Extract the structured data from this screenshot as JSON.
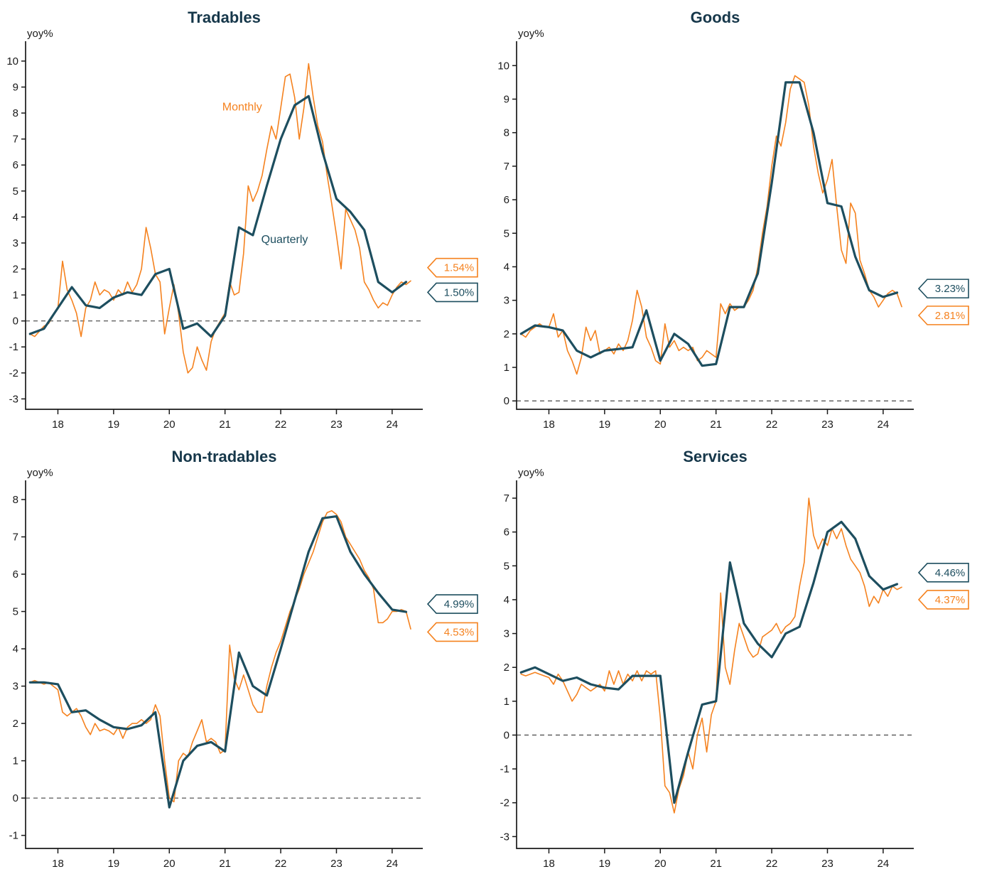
{
  "colors": {
    "monthly": "#F5821F",
    "quarterly": "#1D4E5F",
    "title": "#16374A",
    "axis": "#1A1A1A",
    "zero": "#555555"
  },
  "chart_data": [
    {
      "type": "line",
      "title": "Tradables",
      "ylabel": "yoy%",
      "ylim": [
        -3.4,
        10.6
      ],
      "xlim": [
        2017.42,
        2024.55
      ],
      "yticks": [
        -3,
        -2,
        -1,
        0,
        1,
        2,
        3,
        4,
        5,
        6,
        7,
        8,
        9,
        10
      ],
      "xticks": [
        2018,
        2019,
        2020,
        2021,
        2022,
        2023,
        2024
      ],
      "xtick_labels": [
        "18",
        "19",
        "20",
        "21",
        "22",
        "23",
        "24"
      ],
      "grid": false,
      "zero_line_dashed": true,
      "series": [
        {
          "name": "Monthly",
          "color_key": "monthly",
          "x_start": 2017.5,
          "x_step_months": 1,
          "values": [
            -0.5,
            -0.6,
            -0.4,
            -0.2,
            -0.1,
            0.2,
            0.5,
            2.3,
            1.2,
            0.8,
            0.3,
            -0.6,
            0.5,
            0.8,
            1.5,
            1.0,
            1.2,
            1.1,
            0.8,
            1.2,
            1.0,
            1.5,
            1.1,
            1.4,
            2.0,
            3.6,
            2.8,
            1.8,
            1.5,
            -0.5,
            0.5,
            1.4,
            0.3,
            -1.2,
            -2.0,
            -1.8,
            -1.0,
            -1.5,
            -1.9,
            -0.8,
            -0.3,
            0.0,
            0.3,
            1.5,
            1.0,
            1.1,
            2.6,
            5.2,
            4.6,
            5.0,
            5.6,
            6.6,
            7.5,
            7.0,
            8.2,
            9.4,
            9.5,
            8.6,
            7.0,
            8.2,
            9.9,
            8.6,
            7.5,
            6.9,
            5.6,
            4.5,
            3.3,
            2.0,
            4.3,
            3.9,
            3.5,
            2.8,
            1.5,
            1.2,
            0.8,
            0.5,
            0.7,
            0.6,
            1.0,
            1.3,
            1.5,
            1.4,
            1.54
          ]
        },
        {
          "name": "Quarterly",
          "color_key": "quarterly",
          "x_start": 2017.5,
          "x_step_months": 3,
          "values": [
            -0.5,
            -0.3,
            0.5,
            1.3,
            0.6,
            0.5,
            0.9,
            1.1,
            1.0,
            1.8,
            2.0,
            -0.3,
            -0.1,
            -0.6,
            0.2,
            3.6,
            3.3,
            5.2,
            7.0,
            8.3,
            8.65,
            6.5,
            4.7,
            4.2,
            3.5,
            1.5,
            1.1,
            1.5
          ]
        }
      ],
      "annotations": [
        {
          "text": "Monthly",
          "x": 2020.95,
          "y": 8.1,
          "color_key": "monthly"
        },
        {
          "text": "Quarterly",
          "x": 2021.65,
          "y": 3.0,
          "color_key": "quarterly"
        }
      ],
      "callouts": [
        {
          "text": "1.54%",
          "color_key": "monthly",
          "y": 2.05
        },
        {
          "text": "1.50%",
          "color_key": "quarterly",
          "y": 1.1
        }
      ]
    },
    {
      "type": "line",
      "title": "Goods",
      "ylabel": "yoy%",
      "ylim": [
        -0.25,
        10.6
      ],
      "xlim": [
        2017.42,
        2024.55
      ],
      "yticks": [
        0,
        1,
        2,
        3,
        4,
        5,
        6,
        7,
        8,
        9,
        10
      ],
      "xticks": [
        2018,
        2019,
        2020,
        2021,
        2022,
        2023,
        2024
      ],
      "xtick_labels": [
        "18",
        "19",
        "20",
        "21",
        "22",
        "23",
        "24"
      ],
      "grid": false,
      "zero_line_dashed": true,
      "series": [
        {
          "name": "Monthly",
          "color_key": "monthly",
          "x_start": 2017.5,
          "x_step_months": 1,
          "values": [
            2.0,
            1.9,
            2.1,
            2.2,
            2.3,
            2.2,
            2.2,
            2.6,
            1.9,
            2.1,
            1.5,
            1.2,
            0.8,
            1.3,
            2.2,
            1.8,
            2.1,
            1.4,
            1.5,
            1.6,
            1.4,
            1.7,
            1.5,
            1.8,
            2.4,
            3.3,
            2.8,
            1.9,
            1.6,
            1.2,
            1.1,
            2.3,
            1.6,
            1.8,
            1.5,
            1.6,
            1.5,
            1.6,
            1.2,
            1.3,
            1.5,
            1.4,
            1.3,
            2.9,
            2.6,
            2.9,
            2.7,
            2.8,
            2.8,
            3.0,
            3.3,
            4.0,
            5.0,
            5.8,
            7.0,
            7.9,
            7.6,
            8.3,
            9.3,
            9.7,
            9.6,
            9.5,
            8.8,
            7.6,
            6.8,
            6.2,
            6.6,
            7.2,
            5.8,
            4.5,
            4.1,
            5.9,
            5.6,
            4.2,
            3.8,
            3.3,
            3.1,
            2.8,
            3.0,
            3.2,
            3.3,
            3.2,
            2.81
          ]
        },
        {
          "name": "Quarterly",
          "color_key": "quarterly",
          "x_start": 2017.5,
          "x_step_months": 3,
          "values": [
            2.0,
            2.25,
            2.2,
            2.1,
            1.5,
            1.3,
            1.5,
            1.55,
            1.6,
            2.7,
            1.2,
            2.0,
            1.7,
            1.05,
            1.1,
            2.8,
            2.8,
            3.8,
            6.5,
            9.5,
            9.5,
            8.0,
            5.9,
            5.8,
            4.3,
            3.3,
            3.1,
            3.23
          ]
        }
      ],
      "annotations": [],
      "callouts": [
        {
          "text": "3.23%",
          "color_key": "quarterly",
          "y": 3.35
        },
        {
          "text": "2.81%",
          "color_key": "monthly",
          "y": 2.55
        }
      ]
    },
    {
      "type": "line",
      "title": "Non-tradables",
      "ylabel": "yoy%",
      "ylim": [
        -1.35,
        8.4
      ],
      "xlim": [
        2017.42,
        2024.55
      ],
      "yticks": [
        -1,
        0,
        1,
        2,
        3,
        4,
        5,
        6,
        7,
        8
      ],
      "xticks": [
        2018,
        2019,
        2020,
        2021,
        2022,
        2023,
        2024
      ],
      "xtick_labels": [
        "18",
        "19",
        "20",
        "21",
        "22",
        "23",
        "24"
      ],
      "grid": false,
      "zero_line_dashed": true,
      "series": [
        {
          "name": "Monthly",
          "color_key": "monthly",
          "x_start": 2017.5,
          "x_step_months": 1,
          "values": [
            3.1,
            3.15,
            3.1,
            3.05,
            3.1,
            3.0,
            2.9,
            2.3,
            2.2,
            2.3,
            2.4,
            2.2,
            1.9,
            1.7,
            2.0,
            1.8,
            1.85,
            1.8,
            1.7,
            1.9,
            1.6,
            1.9,
            2.0,
            2.0,
            2.1,
            2.0,
            2.1,
            2.5,
            2.2,
            1.0,
            0.0,
            -0.1,
            1.0,
            1.2,
            1.1,
            1.5,
            1.8,
            2.1,
            1.5,
            1.6,
            1.5,
            1.2,
            1.3,
            4.1,
            3.2,
            2.9,
            3.3,
            2.9,
            2.5,
            2.3,
            2.3,
            3.0,
            3.5,
            3.9,
            4.2,
            4.6,
            5.0,
            5.3,
            5.6,
            6.0,
            6.3,
            6.6,
            7.0,
            7.4,
            7.65,
            7.7,
            7.6,
            7.4,
            7.0,
            6.8,
            6.6,
            6.4,
            6.1,
            5.9,
            5.6,
            4.7,
            4.7,
            4.8,
            5.0,
            5.0,
            5.05,
            5.0,
            4.53
          ]
        },
        {
          "name": "Quarterly",
          "color_key": "quarterly",
          "x_start": 2017.5,
          "x_step_months": 3,
          "values": [
            3.1,
            3.1,
            3.05,
            2.3,
            2.35,
            2.1,
            1.9,
            1.85,
            1.95,
            2.3,
            -0.25,
            1.0,
            1.4,
            1.5,
            1.25,
            3.9,
            3.0,
            2.75,
            4.0,
            5.3,
            6.6,
            7.5,
            7.55,
            6.6,
            6.0,
            5.5,
            5.05,
            4.99
          ]
        }
      ],
      "annotations": [],
      "callouts": [
        {
          "text": "4.99%",
          "color_key": "quarterly",
          "y": 5.2
        },
        {
          "text": "4.53%",
          "color_key": "monthly",
          "y": 4.45
        }
      ]
    },
    {
      "type": "line",
      "title": "Services",
      "ylabel": "yoy%",
      "ylim": [
        -3.35,
        7.4
      ],
      "xlim": [
        2017.42,
        2024.55
      ],
      "yticks": [
        -3,
        -2,
        -1,
        0,
        1,
        2,
        3,
        4,
        5,
        6,
        7
      ],
      "xticks": [
        2018,
        2019,
        2020,
        2021,
        2022,
        2023,
        2024
      ],
      "xtick_labels": [
        "18",
        "19",
        "20",
        "21",
        "22",
        "23",
        "24"
      ],
      "grid": false,
      "zero_line_dashed": true,
      "series": [
        {
          "name": "Monthly",
          "color_key": "monthly",
          "x_start": 2017.5,
          "x_step_months": 1,
          "values": [
            1.8,
            1.75,
            1.8,
            1.85,
            1.8,
            1.75,
            1.7,
            1.5,
            1.8,
            1.6,
            1.3,
            1.0,
            1.2,
            1.5,
            1.4,
            1.3,
            1.4,
            1.5,
            1.3,
            1.9,
            1.5,
            1.9,
            1.5,
            1.8,
            1.6,
            1.9,
            1.6,
            1.9,
            1.8,
            1.9,
            0.5,
            -1.5,
            -1.7,
            -2.3,
            -1.6,
            -1.2,
            -0.5,
            -1.0,
            0.0,
            0.5,
            -0.5,
            0.6,
            1.0,
            4.2,
            2.0,
            1.5,
            2.5,
            3.3,
            2.9,
            2.5,
            2.3,
            2.4,
            2.9,
            3.0,
            3.1,
            3.3,
            3.0,
            3.2,
            3.3,
            3.5,
            4.4,
            5.1,
            7.0,
            5.9,
            5.5,
            5.8,
            5.6,
            6.1,
            5.8,
            6.1,
            5.6,
            5.2,
            5.0,
            4.8,
            4.4,
            3.8,
            4.1,
            3.9,
            4.3,
            4.1,
            4.4,
            4.3,
            4.37
          ]
        },
        {
          "name": "Quarterly",
          "color_key": "quarterly",
          "x_start": 2017.5,
          "x_step_months": 3,
          "values": [
            1.85,
            2.0,
            1.8,
            1.6,
            1.7,
            1.5,
            1.4,
            1.35,
            1.75,
            1.75,
            1.75,
            -2.0,
            -0.5,
            0.9,
            1.0,
            5.1,
            3.3,
            2.7,
            2.3,
            3.0,
            3.2,
            4.5,
            6.0,
            6.3,
            5.8,
            4.7,
            4.3,
            4.46
          ]
        }
      ],
      "annotations": [],
      "callouts": [
        {
          "text": "4.46%",
          "color_key": "quarterly",
          "y": 4.8
        },
        {
          "text": "4.37%",
          "color_key": "monthly",
          "y": 4.0
        }
      ]
    }
  ]
}
